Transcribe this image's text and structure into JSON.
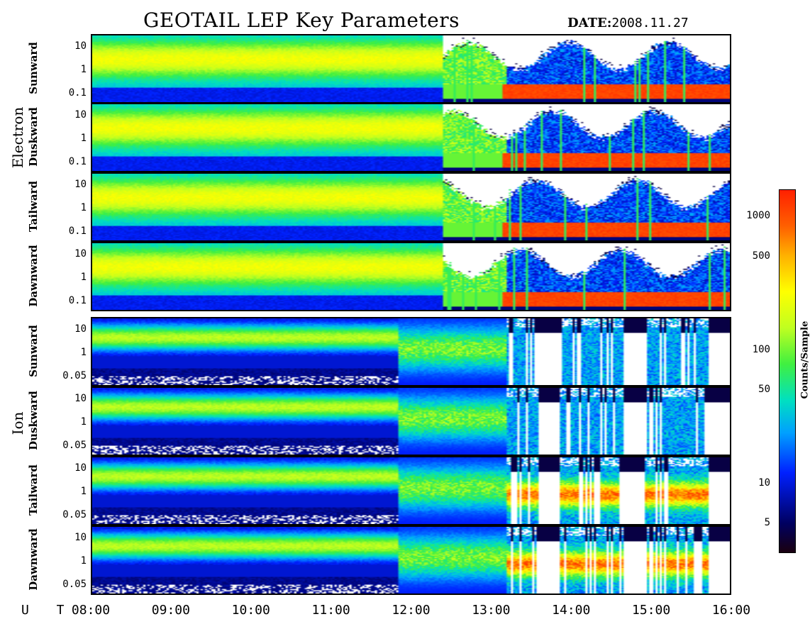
{
  "header": {
    "title": "GEOTAIL LEP Key Parameters",
    "date_label": "DATE:",
    "date_value": "2008.11.27"
  },
  "x_axis": {
    "label": "U T",
    "ticks": [
      "08:00",
      "09:00",
      "10:00",
      "11:00",
      "12:00",
      "13:00",
      "14:00",
      "15:00",
      "16:00"
    ]
  },
  "groups": {
    "electron": "Electron",
    "ion": "Ion"
  },
  "colorbar": {
    "label": "Counts/Sample",
    "ticks": [
      "1000",
      "500",
      "100",
      "50",
      "10",
      "5"
    ],
    "scale": "log"
  },
  "chart_data": {
    "type": "heatmap",
    "title": "GEOTAIL LEP Key Parameters",
    "date": "2008.11.27",
    "xlabel": "U T",
    "x_range": [
      "08:00",
      "16:00"
    ],
    "colorbar_label": "Counts/Sample",
    "colorbar_ticks": [
      1000,
      500,
      100,
      50,
      10,
      5
    ],
    "panels": [
      {
        "species": "Electron",
        "direction": "Sunward",
        "yticks": [
          "10",
          "1",
          "0.1"
        ],
        "y_scale": "log"
      },
      {
        "species": "Electron",
        "direction": "Duskward",
        "yticks": [
          "10",
          "1",
          "0.1"
        ],
        "y_scale": "log"
      },
      {
        "species": "Electron",
        "direction": "Tailward",
        "yticks": [
          "10",
          "1",
          "0.1"
        ],
        "y_scale": "log"
      },
      {
        "species": "Electron",
        "direction": "Dawnward",
        "yticks": [
          "10",
          "1",
          "0.1"
        ],
        "y_scale": "log"
      },
      {
        "species": "Ion",
        "direction": "Sunward",
        "yticks": [
          "10",
          "1",
          "0.05"
        ],
        "y_scale": "log"
      },
      {
        "species": "Ion",
        "direction": "Duskward",
        "yticks": [
          "10",
          "1",
          "0.05"
        ],
        "y_scale": "log"
      },
      {
        "species": "Ion",
        "direction": "Tailward",
        "yticks": [
          "10",
          "1",
          "0.05"
        ],
        "y_scale": "log"
      },
      {
        "species": "Ion",
        "direction": "Dawnward",
        "yticks": [
          "10",
          "1",
          "0.05"
        ],
        "y_scale": "log"
      }
    ]
  }
}
